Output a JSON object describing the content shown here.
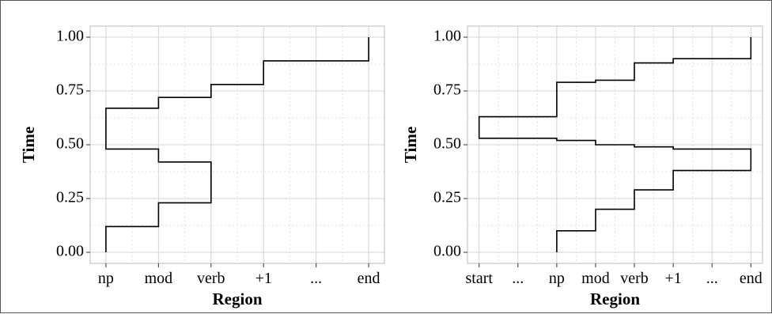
{
  "chart_data": [
    {
      "type": "line",
      "step": true,
      "xlabel": "Region",
      "ylabel": "Time",
      "categories": [
        "np",
        "mod",
        "verb",
        "+1",
        "...",
        "end"
      ],
      "ylim": [
        0,
        1
      ],
      "yticks": [
        "0.00",
        "0.25",
        "0.50",
        "0.75",
        "1.00"
      ],
      "grid": true,
      "series": [
        {
          "points": [
            {
              "x": "np",
              "y": 0.0
            },
            {
              "x": "np",
              "y": 0.12
            },
            {
              "x": "mod",
              "y": 0.12
            },
            {
              "x": "mod",
              "y": 0.23
            },
            {
              "x": "verb",
              "y": 0.23
            },
            {
              "x": "verb",
              "y": 0.42
            },
            {
              "x": "mod",
              "y": 0.42
            },
            {
              "x": "mod",
              "y": 0.48
            },
            {
              "x": "np",
              "y": 0.48
            },
            {
              "x": "np",
              "y": 0.67
            },
            {
              "x": "mod",
              "y": 0.67
            },
            {
              "x": "mod",
              "y": 0.72
            },
            {
              "x": "verb",
              "y": 0.72
            },
            {
              "x": "verb",
              "y": 0.78
            },
            {
              "x": "+1",
              "y": 0.78
            },
            {
              "x": "+1",
              "y": 0.89
            },
            {
              "x": "end",
              "y": 0.89
            },
            {
              "x": "end",
              "y": 1.0
            }
          ]
        }
      ]
    },
    {
      "type": "line",
      "step": true,
      "xlabel": "Region",
      "ylabel": "Time",
      "categories": [
        "start",
        "...",
        "np",
        "mod",
        "verb",
        "+1",
        "...",
        "end"
      ],
      "ylim": [
        0,
        1
      ],
      "yticks": [
        "0.00",
        "0.25",
        "0.50",
        "0.75",
        "1.00"
      ],
      "grid": true,
      "series": [
        {
          "points": [
            {
              "x": "np",
              "y": 0.0
            },
            {
              "x": "np",
              "y": 0.1
            },
            {
              "x": "mod",
              "y": 0.1
            },
            {
              "x": "mod",
              "y": 0.2
            },
            {
              "x": "verb",
              "y": 0.2
            },
            {
              "x": "verb",
              "y": 0.29
            },
            {
              "x": "+1",
              "y": 0.29
            },
            {
              "x": "+1",
              "y": 0.38
            },
            {
              "x": "end",
              "y": 0.38
            },
            {
              "x": "end",
              "y": 0.48
            },
            {
              "x": "+1",
              "y": 0.48
            },
            {
              "x": "+1",
              "y": 0.49
            },
            {
              "x": "verb",
              "y": 0.49
            },
            {
              "x": "verb",
              "y": 0.5
            },
            {
              "x": "mod",
              "y": 0.5
            },
            {
              "x": "mod",
              "y": 0.52
            },
            {
              "x": "np",
              "y": 0.52
            },
            {
              "x": "np",
              "y": 0.53
            },
            {
              "x": "start",
              "y": 0.53
            },
            {
              "x": "start",
              "y": 0.63
            },
            {
              "x": "np",
              "y": 0.63
            },
            {
              "x": "np",
              "y": 0.79
            },
            {
              "x": "mod",
              "y": 0.79
            },
            {
              "x": "mod",
              "y": 0.8
            },
            {
              "x": "verb",
              "y": 0.8
            },
            {
              "x": "verb",
              "y": 0.88
            },
            {
              "x": "+1",
              "y": 0.88
            },
            {
              "x": "+1",
              "y": 0.9
            },
            {
              "x": "end",
              "y": 0.9
            },
            {
              "x": "end",
              "y": 1.0
            }
          ]
        }
      ]
    }
  ]
}
